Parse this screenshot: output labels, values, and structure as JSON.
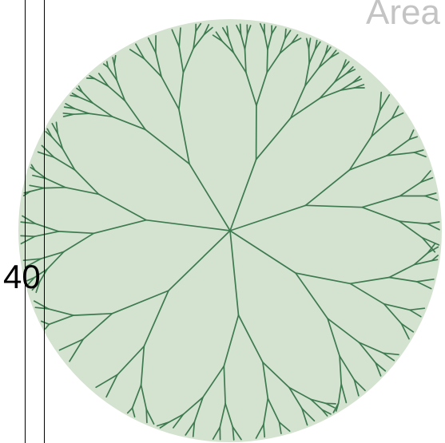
{
  "title": "Area",
  "axis_value": "40",
  "colors": {
    "disc_fill": "#d4e2d0",
    "branch": "#3d7a4f",
    "title": "#c4c4c4"
  }
}
